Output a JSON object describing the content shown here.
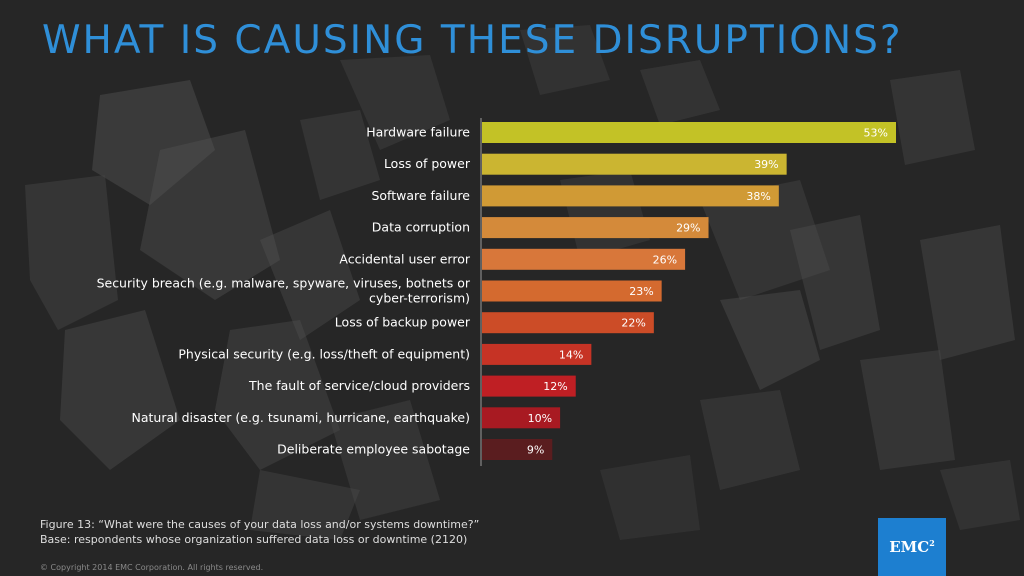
{
  "title": "WHAT IS CAUSING THESE DISRUPTIONS?",
  "caption": {
    "line1": "Figure 13: “What were the causes of your data loss and/or systems downtime?”",
    "line2": "Base: respondents whose organization suffered data loss or downtime (2120)"
  },
  "copyright": "© Copyright 2014 EMC Corporation. All rights reserved.",
  "logo": {
    "text": "EMC",
    "sup": "2"
  },
  "colors": {
    "background": "#262626",
    "title": "#2f8fd8",
    "bars": [
      "#c3c226",
      "#cbb531",
      "#d09a35",
      "#d48a3a",
      "#d8773a",
      "#d46a2f",
      "#cc4c27",
      "#c63325",
      "#bf1f24",
      "#a81a22",
      "#5a1d1f"
    ]
  },
  "chart_data": {
    "type": "bar",
    "orientation": "horizontal",
    "title": "WHAT IS CAUSING THESE DISRUPTIONS?",
    "xlabel": "",
    "ylabel": "",
    "xlim": [
      0,
      53
    ],
    "categories": [
      [
        "Hardware failure"
      ],
      [
        "Loss of power"
      ],
      [
        "Software failure"
      ],
      [
        "Data corruption"
      ],
      [
        "Accidental user error"
      ],
      [
        "Security breach (e.g. malware, spyware, viruses, botnets or",
        "cyber-terrorism)"
      ],
      [
        "Loss of backup power"
      ],
      [
        "Physical security (e.g. loss/theft of equipment)"
      ],
      [
        "The fault of service/cloud providers"
      ],
      [
        "Natural disaster (e.g. tsunami, hurricane, earthquake)"
      ],
      [
        "Deliberate employee sabotage"
      ]
    ],
    "values": [
      53,
      39,
      38,
      29,
      26,
      23,
      22,
      14,
      12,
      10,
      9
    ],
    "value_labels": [
      "53%",
      "39%",
      "38%",
      "29%",
      "26%",
      "23%",
      "22%",
      "14%",
      "12%",
      "10%",
      "9%"
    ]
  }
}
